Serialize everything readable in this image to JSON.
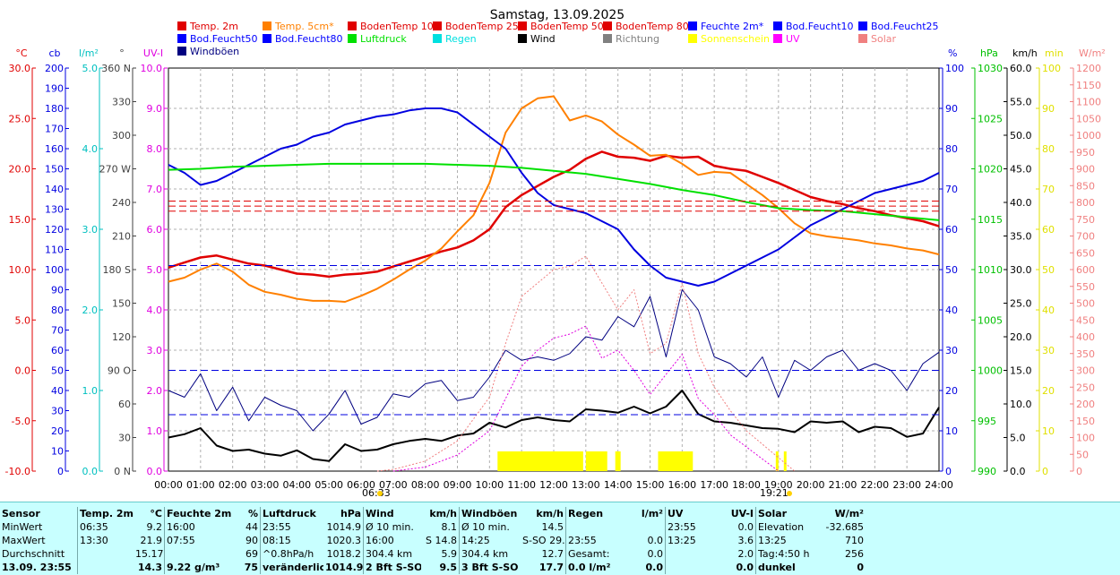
{
  "chart_data": {
    "type": "line",
    "title": "Samstag, 13.09.2025",
    "legend": [
      {
        "name": "Temp. 2m",
        "color": "#e00000"
      },
      {
        "name": "Temp. 5cm*",
        "color": "#ff8000"
      },
      {
        "name": "BodenTemp 10",
        "color": "#e00000"
      },
      {
        "name": "BodenTemp 25",
        "color": "#e00000"
      },
      {
        "name": "BodenTemp 50",
        "color": "#e00000"
      },
      {
        "name": "BodenTemp 80",
        "color": "#e00000"
      },
      {
        "name": "Feuchte 2m*",
        "color": "#0000ff"
      },
      {
        "name": "Bod.Feucht10",
        "color": "#0000ff"
      },
      {
        "name": "Bod.Feucht25",
        "color": "#0000ff"
      },
      {
        "name": "Bod.Feucht50",
        "color": "#0000ff"
      },
      {
        "name": "Bod.Feucht80",
        "color": "#0000ff"
      },
      {
        "name": "Luftdruck",
        "color": "#00e000"
      },
      {
        "name": "Regen",
        "color": "#00e0e0"
      },
      {
        "name": "Wind",
        "color": "#000000"
      },
      {
        "name": "Richtung",
        "color": "#808080"
      },
      {
        "name": "Sonnenschein",
        "color": "#ffff00"
      },
      {
        "name": "UV",
        "color": "#ff00ff"
      },
      {
        "name": "Solar",
        "color": "#f08080"
      },
      {
        "name": "Windböen",
        "color": "#000080"
      }
    ],
    "x_ticks": [
      "00:00",
      "01:00",
      "02:00",
      "03:00",
      "04:00",
      "05:00",
      "06:00",
      "07:00",
      "08:00",
      "09:00",
      "10:00",
      "11:00",
      "12:00",
      "13:00",
      "14:00",
      "15:00",
      "16:00",
      "17:00",
      "18:00",
      "19:00",
      "20:00",
      "21:00",
      "22:00",
      "23:00",
      "24:00"
    ],
    "sunrise": "06:33",
    "sunset": "19:21",
    "axes_left": [
      {
        "unit": "°C",
        "color": "#e00000",
        "ticks": [
          "30.0",
          "25.0",
          "20.0",
          "15.0",
          "10.0",
          "5.0",
          "0.0",
          "-5.0",
          "-10.0"
        ]
      },
      {
        "unit": "cb",
        "color": "#0000e0",
        "ticks": [
          "200",
          "190",
          "180",
          "170",
          "160",
          "150",
          "140",
          "130",
          "120",
          "110",
          "100",
          "90",
          "80",
          "70",
          "60",
          "50",
          "40",
          "30",
          "20",
          "10",
          "0"
        ]
      },
      {
        "unit": "l/m²",
        "color": "#00c0c0",
        "ticks": [
          "5.0",
          "4.0",
          "3.0",
          "2.0",
          "1.0",
          "0.0"
        ]
      },
      {
        "unit": "°",
        "color": "#404040",
        "ticks": [
          "360 N",
          "330",
          "300",
          "270 W",
          "240",
          "210",
          "180 S",
          "150",
          "120",
          "90 O",
          "60",
          "30",
          "0 N"
        ]
      },
      {
        "unit": "UV-I",
        "color": "#e000e0",
        "ticks": [
          "10.0",
          "9.0",
          "8.0",
          "7.0",
          "6.0",
          "5.0",
          "4.0",
          "3.0",
          "2.0",
          "1.0",
          "0.0"
        ]
      }
    ],
    "axes_right": [
      {
        "unit": "%",
        "color": "#0000e0",
        "ticks": [
          "100",
          "90",
          "80",
          "70",
          "60",
          "50",
          "40",
          "30",
          "20",
          "10",
          "0"
        ]
      },
      {
        "unit": "hPa",
        "color": "#00c000",
        "ticks": [
          "1030",
          "1025",
          "1020",
          "1015",
          "1010",
          "1005",
          "1000",
          "995",
          "990"
        ]
      },
      {
        "unit": "km/h",
        "color": "#000000",
        "ticks": [
          "60.0",
          "55.0",
          "50.0",
          "45.0",
          "40.0",
          "35.0",
          "30.0",
          "25.0",
          "20.0",
          "15.0",
          "10.0",
          "5.0",
          "0.0"
        ]
      },
      {
        "unit": "min",
        "color": "#e0e000",
        "ticks": [
          "100",
          "90",
          "80",
          "70",
          "60",
          "50",
          "40",
          "30",
          "20",
          "10",
          "0"
        ]
      },
      {
        "unit": "W/m²",
        "color": "#f08080",
        "ticks": [
          "1200",
          "1150",
          "1100",
          "1050",
          "1000",
          "950",
          "900",
          "850",
          "800",
          "750",
          "700",
          "650",
          "600",
          "550",
          "500",
          "450",
          "400",
          "350",
          "300",
          "250",
          "200",
          "150",
          "100",
          "50",
          "0"
        ]
      }
    ],
    "series": [
      {
        "name": "Temp. 2m",
        "unit": "°C",
        "color": "#e00000",
        "x": [
          0,
          0.5,
          1,
          1.5,
          2,
          2.5,
          3,
          3.5,
          4,
          4.5,
          5,
          5.5,
          6,
          6.5,
          7,
          7.5,
          8,
          8.5,
          9,
          9.5,
          10,
          10.5,
          11,
          11.5,
          12,
          12.5,
          13,
          13.5,
          14,
          14.5,
          15,
          15.5,
          16,
          16.5,
          17,
          17.5,
          18,
          18.5,
          19,
          19.5,
          20,
          20.5,
          21,
          21.5,
          22,
          22.5,
          23,
          23.5,
          24
        ],
        "y": [
          10.2,
          10.7,
          11.2,
          11.4,
          11.0,
          10.6,
          10.4,
          10.0,
          9.6,
          9.5,
          9.3,
          9.5,
          9.6,
          9.8,
          10.3,
          10.8,
          11.3,
          11.8,
          12.2,
          12.9,
          14.0,
          16.2,
          17.4,
          18.3,
          19.2,
          19.9,
          21.0,
          21.7,
          21.2,
          21.1,
          20.8,
          21.3,
          21.1,
          21.2,
          20.3,
          20.0,
          19.8,
          19.2,
          18.6,
          17.9,
          17.2,
          16.8,
          16.5,
          16.1,
          15.8,
          15.4,
          15.1,
          14.8,
          14.3
        ]
      },
      {
        "name": "Temp. 5cm*",
        "unit": "°C",
        "color": "#ff8000",
        "x": [
          0,
          0.5,
          1,
          1.5,
          2,
          2.5,
          3,
          3.5,
          4,
          4.5,
          5,
          5.5,
          6,
          6.5,
          7,
          7.5,
          8,
          8.5,
          9,
          9.5,
          10,
          10.5,
          11,
          11.5,
          12,
          12.5,
          13,
          13.5,
          14,
          14.5,
          15,
          15.5,
          16,
          16.5,
          17,
          17.5,
          18,
          18.5,
          19,
          19.5,
          20,
          20.5,
          21,
          21.5,
          22,
          22.5,
          23,
          23.5,
          24
        ],
        "y": [
          8.8,
          9.2,
          10.0,
          10.6,
          9.8,
          8.5,
          7.8,
          7.5,
          7.1,
          6.9,
          6.9,
          6.8,
          7.4,
          8.1,
          9.0,
          10.0,
          10.9,
          12.1,
          13.8,
          15.4,
          18.6,
          23.6,
          26.0,
          27.0,
          27.2,
          24.8,
          25.3,
          24.7,
          23.4,
          22.4,
          21.3,
          21.4,
          20.5,
          19.4,
          19.7,
          19.6,
          18.5,
          17.4,
          16.1,
          14.6,
          13.6,
          13.3,
          13.1,
          12.9,
          12.6,
          12.4,
          12.1,
          11.9,
          11.5
        ]
      },
      {
        "name": "Feuchte 2m*",
        "unit": "%",
        "color": "#0000e0",
        "x": [
          0,
          0.5,
          1,
          1.5,
          2,
          2.5,
          3,
          3.5,
          4,
          4.5,
          5,
          5.5,
          6,
          6.5,
          7,
          7.5,
          8,
          8.5,
          9,
          9.5,
          10,
          10.5,
          11,
          11.5,
          12,
          12.5,
          13,
          13.5,
          14,
          14.5,
          15,
          15.5,
          16,
          16.5,
          17,
          17.5,
          18,
          18.5,
          19,
          19.5,
          20,
          20.5,
          21,
          21.5,
          22,
          22.5,
          23,
          23.5,
          24
        ],
        "y": [
          76,
          74,
          71,
          72,
          74,
          76,
          78,
          80,
          81,
          83,
          84,
          86,
          87,
          88,
          88.5,
          89.5,
          90,
          90,
          89,
          86,
          83,
          80,
          74,
          69,
          66,
          65,
          64,
          62,
          60,
          55,
          51,
          48,
          47,
          46,
          47,
          49,
          51,
          53,
          55,
          58,
          61,
          63,
          65,
          67,
          69,
          70,
          71,
          72,
          74
        ]
      },
      {
        "name": "Luftdruck",
        "unit": "hPa",
        "color": "#00e000",
        "x": [
          0,
          1,
          2,
          3,
          4,
          5,
          6,
          7,
          8,
          9,
          10,
          11,
          12,
          13,
          14,
          15,
          16,
          17,
          18,
          19,
          20,
          21,
          22,
          23,
          24
        ],
        "y": [
          1019.9,
          1020.0,
          1020.2,
          1020.3,
          1020.4,
          1020.5,
          1020.5,
          1020.5,
          1020.5,
          1020.4,
          1020.3,
          1020.1,
          1019.8,
          1019.5,
          1019.0,
          1018.5,
          1017.9,
          1017.4,
          1016.7,
          1016.1,
          1015.9,
          1015.8,
          1015.5,
          1015.2,
          1014.9
        ]
      },
      {
        "name": "Wind",
        "unit": "km/h",
        "color": "#000000",
        "x": [
          0,
          0.5,
          1,
          1.5,
          2,
          2.5,
          3,
          3.5,
          4,
          4.5,
          5,
          5.5,
          6,
          6.5,
          7,
          7.5,
          8,
          8.5,
          9,
          9.5,
          10,
          10.5,
          11,
          11.5,
          12,
          12.5,
          13,
          13.5,
          14,
          14.5,
          15,
          15.5,
          16,
          16.5,
          17,
          17.5,
          18,
          18.5,
          19,
          19.5,
          20,
          20.5,
          21,
          21.5,
          22,
          22.5,
          23,
          23.5,
          24
        ],
        "y": [
          5.0,
          5.5,
          6.4,
          3.8,
          3.0,
          3.2,
          2.6,
          2.3,
          3.1,
          1.8,
          1.5,
          4.0,
          3.0,
          3.2,
          4.0,
          4.5,
          4.8,
          4.5,
          5.3,
          5.6,
          7.2,
          6.5,
          7.6,
          8.0,
          7.6,
          7.4,
          9.2,
          9.0,
          8.7,
          9.6,
          8.6,
          9.6,
          12.0,
          8.5,
          7.4,
          7.2,
          6.8,
          6.4,
          6.3,
          5.8,
          7.4,
          7.2,
          7.4,
          5.8,
          6.6,
          6.4,
          5.1,
          5.6,
          9.5
        ]
      },
      {
        "name": "Windböen",
        "unit": "km/h",
        "color": "#000080",
        "x": [
          0,
          0.5,
          1,
          1.5,
          2,
          2.5,
          3,
          3.5,
          4,
          4.5,
          5,
          5.5,
          6,
          6.5,
          7,
          7.5,
          8,
          8.5,
          9,
          9.5,
          10,
          10.5,
          11,
          11.5,
          12,
          12.5,
          13,
          13.5,
          14,
          14.5,
          15,
          15.5,
          16,
          16.5,
          17,
          17.5,
          18,
          18.5,
          19,
          19.5,
          20,
          20.5,
          21,
          21.5,
          22,
          22.5,
          23,
          23.5,
          24
        ],
        "y": [
          12.0,
          11.0,
          14.5,
          9.0,
          12.5,
          7.5,
          11.0,
          9.8,
          9.0,
          6.0,
          8.5,
          12.0,
          7.0,
          8.0,
          11.5,
          11.0,
          13.0,
          13.5,
          10.5,
          11.0,
          14.0,
          18.0,
          16.5,
          17.0,
          16.5,
          17.5,
          20.0,
          19.5,
          23.0,
          21.5,
          26.0,
          17.0,
          27.0,
          24.0,
          17.0,
          16.0,
          14.0,
          17.0,
          11.0,
          16.5,
          15.0,
          17.0,
          18.0,
          15.0,
          16.0,
          15.0,
          12.0,
          16.0,
          17.7
        ]
      },
      {
        "name": "Solar",
        "unit": "W/m²",
        "color": "#f08080",
        "x": [
          6.5,
          7,
          8,
          9,
          10,
          10.5,
          11,
          11.5,
          12,
          12.5,
          13,
          13.5,
          14,
          14.5,
          15,
          15.5,
          16,
          16.5,
          17,
          17.5,
          18,
          18.5,
          19,
          19.5
        ],
        "y": [
          0,
          5,
          30,
          90,
          220,
          380,
          520,
          560,
          600,
          610,
          640,
          560,
          480,
          540,
          350,
          380,
          560,
          350,
          250,
          180,
          120,
          80,
          40,
          0
        ]
      },
      {
        "name": "UV",
        "unit": "UV-I",
        "color": "#e000e0",
        "x": [
          7,
          8,
          9,
          10,
          10.5,
          11,
          11.5,
          12,
          12.5,
          13,
          13.5,
          14,
          14.5,
          15,
          15.5,
          16,
          16.5,
          17,
          17.5,
          18,
          18.5,
          19
        ],
        "y": [
          0,
          0.1,
          0.4,
          1.0,
          1.8,
          2.6,
          3.0,
          3.3,
          3.4,
          3.6,
          2.8,
          3.0,
          2.5,
          1.9,
          2.4,
          2.9,
          1.8,
          1.4,
          0.9,
          0.6,
          0.3,
          0.0
        ]
      },
      {
        "name": "Bod.Feucht50 (cb)",
        "unit": "cb",
        "color": "#0000e0",
        "x": [
          0,
          24
        ],
        "y": [
          102,
          102
        ]
      },
      {
        "name": "Bod.Feucht (cb)",
        "unit": "cb",
        "color": "#0000e0",
        "x": [
          0,
          24
        ],
        "y": [
          50,
          50
        ]
      },
      {
        "name": "Bod.Feucht (cb) 2",
        "unit": "cb",
        "color": "#0000e0",
        "x": [
          0,
          24
        ],
        "y": [
          28,
          28
        ]
      },
      {
        "name": "BodenTemp (a)",
        "unit": "°C",
        "color": "#e00000",
        "x": [
          0,
          24
        ],
        "y": [
          16.8,
          16.8
        ]
      },
      {
        "name": "BodenTemp (b)",
        "unit": "°C",
        "color": "#e00000",
        "x": [
          0,
          24
        ],
        "y": [
          16.3,
          16.3
        ]
      },
      {
        "name": "BodenTemp (c)",
        "unit": "°C",
        "color": "#e00000",
        "x": [
          0,
          24
        ],
        "y": [
          15.8,
          15.8
        ]
      }
    ],
    "sunshine_intervals": [
      [
        "10:15",
        "12:55"
      ],
      [
        "13:00",
        "13:40"
      ],
      [
        "13:55",
        "14:05"
      ],
      [
        "15:15",
        "16:20"
      ],
      [
        "18:55",
        "19:00"
      ],
      [
        "19:10",
        "19:15"
      ]
    ]
  },
  "summary": {
    "header": [
      "Sensor",
      "Temp. 2m",
      "°C",
      "Feuchte 2m",
      "%",
      "Luftdruck",
      "hPa",
      "Wind",
      "km/h",
      "Windböen",
      "km/h",
      "Regen",
      "l/m²",
      "UV",
      "UV-I",
      "Solar",
      "W/m²"
    ],
    "rows": [
      [
        "MinWert",
        "06:35",
        "9.2",
        "16:00",
        "44",
        "23:55",
        "1014.9",
        "Ø 10 min.",
        "8.1",
        "Ø 10 min.",
        "14.5",
        "",
        "",
        "23:55",
        "0.0",
        "Elevation",
        "-32.685"
      ],
      [
        "MaxWert",
        "13:30",
        "21.9",
        "07:55",
        "90",
        "08:15",
        "1020.3",
        "16:00",
        "S 14.8",
        "14:25",
        "S-SO 29.0",
        "23:55",
        "0.0",
        "13:25",
        "3.6",
        "13:25",
        "710"
      ],
      [
        "Durchschnitt",
        "",
        "15.17",
        "",
        "69",
        "^0.8hPa/h",
        "1018.2",
        "304.4 km",
        "5.9",
        "304.4 km",
        "12.7",
        "Gesamt:",
        "0.0",
        "",
        "2.0",
        "Tag:4:50 h",
        "256"
      ],
      [
        "13.09. 23:55",
        "",
        "14.3",
        "9.22 g/m³",
        "75",
        "veränderlich",
        "1014.9",
        "2 Bft S-SO",
        "9.5",
        "3 Bft S-SO",
        "17.7",
        "0.0 l/m²",
        "0.0",
        "",
        "0.0",
        "dunkel",
        "0"
      ]
    ]
  }
}
